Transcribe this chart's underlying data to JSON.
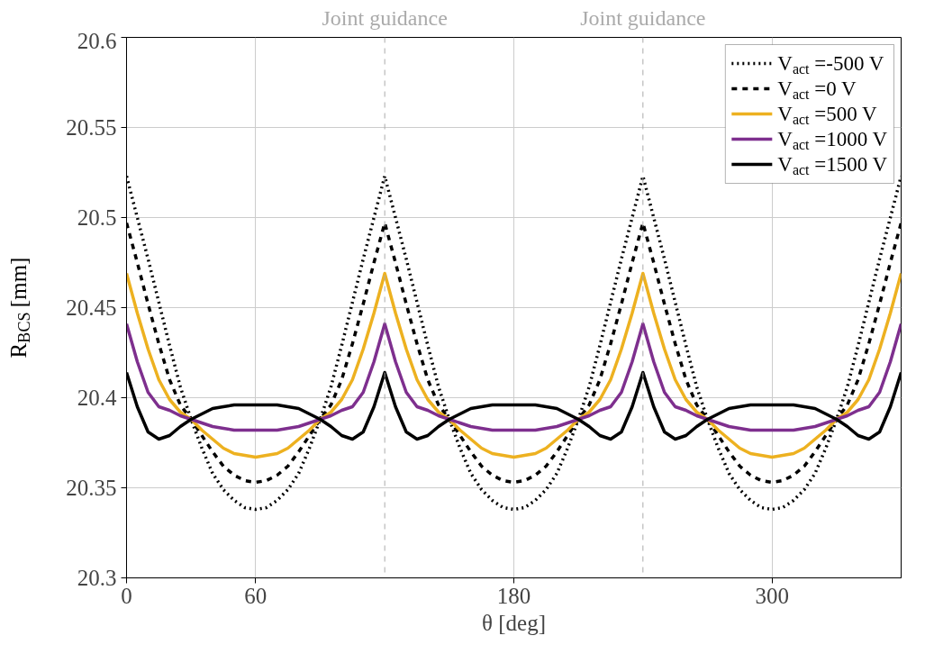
{
  "chart_data": {
    "type": "line",
    "xlabel": "θ [deg]",
    "ylabel": "R$_{BCS}$ [mm]",
    "x": [
      0,
      5,
      10,
      15,
      20,
      25,
      30,
      35,
      40,
      45,
      50,
      55,
      60,
      65,
      70,
      75,
      80,
      85,
      90,
      95,
      100,
      105,
      110,
      115,
      120,
      125,
      130,
      135,
      140,
      145,
      150,
      155,
      160,
      165,
      170,
      175,
      180,
      185,
      190,
      195,
      200,
      205,
      210,
      215,
      220,
      225,
      230,
      235,
      240,
      245,
      250,
      255,
      260,
      265,
      270,
      275,
      280,
      285,
      290,
      295,
      300,
      305,
      310,
      315,
      320,
      325,
      330,
      335,
      340,
      345,
      350,
      355,
      360
    ],
    "xlim": [
      0,
      360
    ],
    "xticks": [
      0,
      60,
      180,
      300
    ],
    "ylim": [
      20.3,
      20.6
    ],
    "yticks": [
      20.3,
      20.35,
      20.4,
      20.45,
      20.5,
      20.55,
      20.6
    ],
    "grid": true,
    "legend": "top right",
    "marker": "none",
    "series": [
      {
        "name": "V$_{act}$ =-500 V",
        "color": "#000000",
        "line_style": "dotted",
        "values": [
          20.523,
          20.5,
          20.477,
          20.453,
          20.429,
          20.406,
          20.388,
          20.372,
          20.358,
          20.349,
          20.343,
          20.339,
          20.338,
          20.339,
          20.343,
          20.349,
          20.358,
          20.372,
          20.388,
          20.406,
          20.429,
          20.453,
          20.477,
          20.5,
          20.523,
          20.5,
          20.477,
          20.453,
          20.429,
          20.406,
          20.388,
          20.372,
          20.358,
          20.349,
          20.343,
          20.339,
          20.338,
          20.339,
          20.343,
          20.349,
          20.358,
          20.372,
          20.388,
          20.406,
          20.429,
          20.453,
          20.477,
          20.5,
          20.523,
          20.5,
          20.477,
          20.453,
          20.429,
          20.406,
          20.388,
          20.372,
          20.358,
          20.349,
          20.343,
          20.339,
          20.338,
          20.339,
          20.343,
          20.349,
          20.358,
          20.372,
          20.388,
          20.406,
          20.429,
          20.453,
          20.477,
          20.5,
          20.523
        ]
      },
      {
        "name": "V$_{act}$ =0 V",
        "color": "#000000",
        "line_style": "dashed",
        "values": [
          20.497,
          20.475,
          20.452,
          20.43,
          20.41,
          20.396,
          20.388,
          20.379,
          20.37,
          20.362,
          20.357,
          20.354,
          20.353,
          20.354,
          20.357,
          20.362,
          20.37,
          20.379,
          20.388,
          20.396,
          20.41,
          20.43,
          20.452,
          20.475,
          20.497,
          20.475,
          20.452,
          20.43,
          20.41,
          20.396,
          20.388,
          20.379,
          20.37,
          20.362,
          20.357,
          20.354,
          20.353,
          20.354,
          20.357,
          20.362,
          20.37,
          20.379,
          20.388,
          20.396,
          20.41,
          20.43,
          20.452,
          20.475,
          20.497,
          20.475,
          20.452,
          20.43,
          20.41,
          20.396,
          20.388,
          20.379,
          20.37,
          20.362,
          20.357,
          20.354,
          20.353,
          20.354,
          20.357,
          20.362,
          20.37,
          20.379,
          20.388,
          20.396,
          20.41,
          20.43,
          20.452,
          20.475,
          20.497
        ]
      },
      {
        "name": "V$_{act}$ =500 V",
        "color": "#edb120",
        "line_style": "solid",
        "values": [
          20.469,
          20.447,
          20.427,
          20.41,
          20.399,
          20.392,
          20.388,
          20.382,
          20.377,
          20.372,
          20.369,
          20.368,
          20.367,
          20.368,
          20.369,
          20.372,
          20.377,
          20.382,
          20.388,
          20.392,
          20.399,
          20.41,
          20.427,
          20.447,
          20.469,
          20.447,
          20.427,
          20.41,
          20.399,
          20.392,
          20.388,
          20.382,
          20.377,
          20.372,
          20.369,
          20.368,
          20.367,
          20.368,
          20.369,
          20.372,
          20.377,
          20.382,
          20.388,
          20.392,
          20.399,
          20.41,
          20.427,
          20.447,
          20.469,
          20.447,
          20.427,
          20.41,
          20.399,
          20.392,
          20.388,
          20.382,
          20.377,
          20.372,
          20.369,
          20.368,
          20.367,
          20.368,
          20.369,
          20.372,
          20.377,
          20.382,
          20.388,
          20.392,
          20.399,
          20.41,
          20.427,
          20.447,
          20.469
        ]
      },
      {
        "name": "V$_{act}$ =1000 V",
        "color": "#7e2f8e",
        "line_style": "solid",
        "values": [
          20.441,
          20.42,
          20.403,
          20.395,
          20.393,
          20.39,
          20.388,
          20.386,
          20.384,
          20.383,
          20.382,
          20.382,
          20.382,
          20.382,
          20.382,
          20.383,
          20.384,
          20.386,
          20.388,
          20.39,
          20.393,
          20.395,
          20.403,
          20.42,
          20.441,
          20.42,
          20.403,
          20.395,
          20.393,
          20.39,
          20.388,
          20.386,
          20.384,
          20.383,
          20.382,
          20.382,
          20.382,
          20.382,
          20.382,
          20.383,
          20.384,
          20.386,
          20.388,
          20.39,
          20.393,
          20.395,
          20.403,
          20.42,
          20.441,
          20.42,
          20.403,
          20.395,
          20.393,
          20.39,
          20.388,
          20.386,
          20.384,
          20.383,
          20.382,
          20.382,
          20.382,
          20.382,
          20.382,
          20.383,
          20.384,
          20.386,
          20.388,
          20.39,
          20.393,
          20.395,
          20.403,
          20.42,
          20.441
        ]
      },
      {
        "name": "V$_{act}$ =1500 V",
        "color": "#000000",
        "line_style": "solid",
        "values": [
          20.414,
          20.395,
          20.381,
          20.377,
          20.379,
          20.384,
          20.388,
          20.391,
          20.394,
          20.395,
          20.396,
          20.396,
          20.396,
          20.396,
          20.396,
          20.395,
          20.394,
          20.391,
          20.388,
          20.384,
          20.379,
          20.377,
          20.381,
          20.395,
          20.414,
          20.395,
          20.381,
          20.377,
          20.379,
          20.384,
          20.388,
          20.391,
          20.394,
          20.395,
          20.396,
          20.396,
          20.396,
          20.396,
          20.396,
          20.395,
          20.394,
          20.391,
          20.388,
          20.384,
          20.379,
          20.377,
          20.381,
          20.395,
          20.414,
          20.395,
          20.381,
          20.377,
          20.379,
          20.384,
          20.388,
          20.391,
          20.394,
          20.395,
          20.396,
          20.396,
          20.396,
          20.396,
          20.396,
          20.395,
          20.394,
          20.391,
          20.388,
          20.384,
          20.379,
          20.377,
          20.381,
          20.395,
          20.414
        ]
      }
    ],
    "ref_lines": [
      {
        "axis": "x",
        "value": 120,
        "label": "Joint guidance",
        "color": "#aaaaaa",
        "line_style": "dashed"
      },
      {
        "axis": "x",
        "value": 240,
        "label": "Joint guidance",
        "color": "#aaaaaa",
        "line_style": "dashed"
      }
    ]
  }
}
